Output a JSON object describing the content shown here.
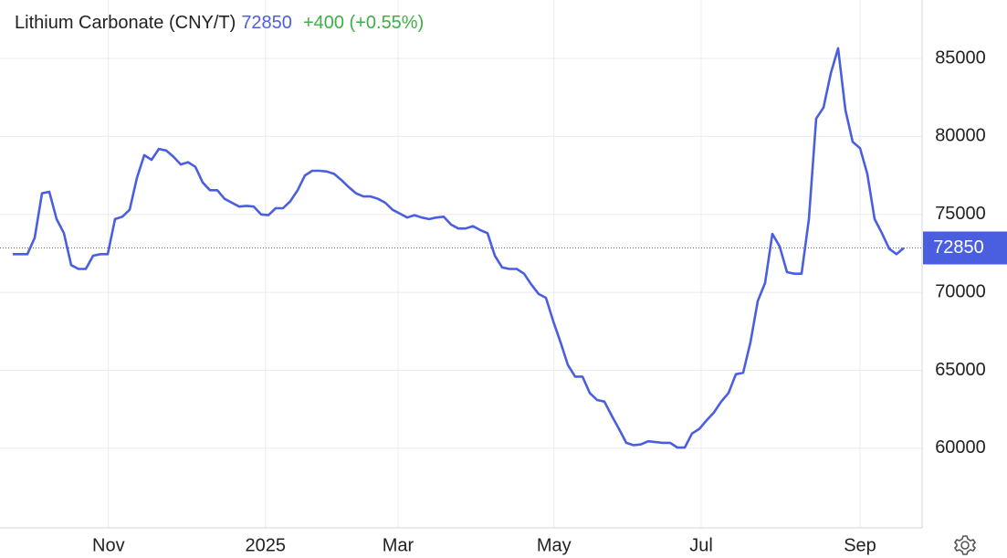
{
  "chart_data": {
    "type": "line",
    "title": "Lithium Carbonate (CNY/T)",
    "change": "+400 (+0.55%)",
    "change_color": "#3cb043",
    "series": [
      {
        "name": "Lithium Carbonate",
        "color": "#4a5fe0",
        "values": [
          72450,
          72450,
          72450,
          73500,
          76350,
          76450,
          74700,
          73800,
          71750,
          71500,
          71500,
          72350,
          72450,
          72450,
          74700,
          74850,
          75300,
          77350,
          78800,
          78500,
          79200,
          79100,
          78700,
          78200,
          78350,
          78050,
          77050,
          76550,
          76550,
          76000,
          75750,
          75500,
          75550,
          75500,
          75000,
          74950,
          75400,
          75400,
          75850,
          76550,
          77500,
          77800,
          77800,
          77750,
          77600,
          77200,
          76750,
          76350,
          76150,
          76150,
          76000,
          75750,
          75300,
          75050,
          74800,
          74950,
          74800,
          74700,
          74800,
          74850,
          74350,
          74100,
          74100,
          74250,
          74000,
          73800,
          72350,
          71600,
          71500,
          71500,
          71200,
          70500,
          69900,
          69650,
          68150,
          66800,
          65350,
          64600,
          64600,
          63550,
          63100,
          63000,
          62100,
          61250,
          60350,
          60200,
          60250,
          60450,
          60400,
          60350,
          60350,
          60050,
          60050,
          60950,
          61250,
          61800,
          62300,
          63000,
          63550,
          64750,
          64850,
          66800,
          69450,
          70600,
          73750,
          72950,
          71300,
          71200,
          71200,
          74700,
          81150,
          81850,
          84050,
          85650,
          81700,
          79650,
          79250,
          77600,
          74700,
          73800,
          72800,
          72450,
          72850
        ]
      }
    ],
    "xlim": [
      0,
      124.5
    ],
    "xticks": [
      {
        "value": 13.1,
        "label": "Nov"
      },
      {
        "value": 34.6,
        "label": "2025"
      },
      {
        "value": 52.75,
        "label": "Mar"
      },
      {
        "value": 74.1,
        "label": "May"
      },
      {
        "value": 94.25,
        "label": "Jul"
      },
      {
        "value": 116,
        "label": "Sep"
      }
    ],
    "ylim": [
      54900,
      88750
    ],
    "yticks": [
      60000,
      65000,
      70000,
      75000,
      80000,
      85000
    ],
    "grid": true
  }
}
